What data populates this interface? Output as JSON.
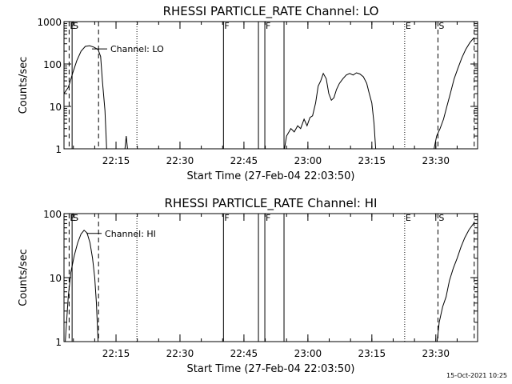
{
  "footer": {
    "timestamp": "15-Oct-2021 10:25"
  },
  "chart_data": [
    {
      "type": "line",
      "title": "RHESSI PARTICLE_RATE Channel: LO",
      "xlabel": "Start Time (27-Feb-04 22:03:50)",
      "ylabel": "Counts/sec",
      "yscale": "log",
      "ylim": [
        1,
        1000
      ],
      "y_ticks": [
        {
          "value": 1,
          "label": "1"
        },
        {
          "value": 10,
          "label": "10"
        },
        {
          "value": 100,
          "label": "100"
        },
        {
          "value": 1000,
          "label": "1000"
        }
      ],
      "xlim_min": [
        -1,
        96
      ],
      "x_ticks": [
        {
          "min": 11.2,
          "label": "22:15"
        },
        {
          "min": 26.2,
          "label": "22:30"
        },
        {
          "min": 41.2,
          "label": "22:45"
        },
        {
          "min": 56.2,
          "label": "23:00"
        },
        {
          "min": 71.2,
          "label": "23:15"
        },
        {
          "min": 86.2,
          "label": "23:30"
        }
      ],
      "annotation": "Channel: LO",
      "markers": [
        {
          "min": 0.2,
          "style": "dashed",
          "label": "E"
        },
        {
          "min": 0.9,
          "style": "solid",
          "label": "S"
        },
        {
          "min": 7.1,
          "style": "dashed",
          "label": ""
        },
        {
          "min": 16.1,
          "style": "dotted",
          "label": ""
        },
        {
          "min": 36.4,
          "style": "solid",
          "label": "F"
        },
        {
          "min": 44.6,
          "style": "solid",
          "label": ""
        },
        {
          "min": 46.1,
          "style": "solid",
          "label": "F"
        },
        {
          "min": 50.6,
          "style": "solid",
          "label": ""
        },
        {
          "min": 78.9,
          "style": "dotted",
          "label": "E"
        },
        {
          "min": 86.7,
          "style": "dashed",
          "label": "S"
        },
        {
          "min": 95.2,
          "style": "dashed",
          "label": ""
        }
      ],
      "series": [
        {
          "segments": [
            [
              [
                -1,
                20
              ],
              [
                0,
                28
              ],
              [
                0.5,
                40
              ],
              [
                1,
                60
              ],
              [
                2,
                120
              ],
              [
                3,
                200
              ],
              [
                4,
                260
              ],
              [
                5,
                270
              ],
              [
                6,
                250
              ],
              [
                7,
                220
              ],
              [
                7.6,
                150
              ],
              [
                8,
                40
              ],
              [
                8.6,
                8
              ],
              [
                9,
                1
              ]
            ],
            [
              [
                13.3,
                1
              ],
              [
                13.6,
                2
              ],
              [
                13.9,
                1
              ]
            ],
            [
              [
                50.7,
                1
              ],
              [
                51.2,
                2
              ],
              [
                52.2,
                3
              ],
              [
                53,
                2.5
              ],
              [
                53.8,
                3.5
              ],
              [
                54.5,
                3
              ],
              [
                55.3,
                5
              ],
              [
                56,
                3.5
              ],
              [
                56.7,
                5.5
              ],
              [
                57.3,
                6
              ],
              [
                58,
                12
              ],
              [
                58.6,
                30
              ],
              [
                59.2,
                40
              ],
              [
                59.8,
                60
              ],
              [
                60.5,
                45
              ],
              [
                61.1,
                20
              ],
              [
                61.7,
                14
              ],
              [
                62.3,
                16
              ],
              [
                62.9,
                25
              ],
              [
                63.6,
                35
              ],
              [
                64.4,
                45
              ],
              [
                65.2,
                55
              ],
              [
                66,
                60
              ],
              [
                66.8,
                55
              ],
              [
                67.6,
                62
              ],
              [
                68.4,
                58
              ],
              [
                69.2,
                50
              ],
              [
                70,
                35
              ],
              [
                70.6,
                20
              ],
              [
                71.2,
                12
              ],
              [
                71.7,
                4
              ],
              [
                72.1,
                1
              ]
            ],
            [
              [
                85.8,
                1
              ],
              [
                86.4,
                2
              ],
              [
                87.2,
                3
              ],
              [
                88,
                5
              ],
              [
                88.8,
                10
              ],
              [
                89.6,
                20
              ],
              [
                90.5,
                45
              ],
              [
                91.4,
                80
              ],
              [
                92.3,
                140
              ],
              [
                93.2,
                220
              ],
              [
                94.2,
                320
              ],
              [
                95.2,
                420
              ]
            ]
          ]
        }
      ]
    },
    {
      "type": "line",
      "title": "RHESSI PARTICLE_RATE Channel: HI",
      "xlabel": "Start Time (27-Feb-04 22:03:50)",
      "ylabel": "Counts/sec",
      "yscale": "log",
      "ylim": [
        1,
        100
      ],
      "y_ticks": [
        {
          "value": 1,
          "label": "1"
        },
        {
          "value": 10,
          "label": "10"
        },
        {
          "value": 100,
          "label": "100"
        }
      ],
      "xlim_min": [
        -1,
        96
      ],
      "x_ticks": [
        {
          "min": 11.2,
          "label": "22:15"
        },
        {
          "min": 26.2,
          "label": "22:30"
        },
        {
          "min": 41.2,
          "label": "22:45"
        },
        {
          "min": 56.2,
          "label": "23:00"
        },
        {
          "min": 71.2,
          "label": "23:15"
        },
        {
          "min": 86.2,
          "label": "23:30"
        }
      ],
      "annotation": "Channel: HI",
      "markers": [
        {
          "min": 0.2,
          "style": "dashed",
          "label": "E"
        },
        {
          "min": 0.9,
          "style": "solid",
          "label": "S"
        },
        {
          "min": 7.1,
          "style": "dashed",
          "label": ""
        },
        {
          "min": 16.1,
          "style": "dotted",
          "label": ""
        },
        {
          "min": 36.4,
          "style": "solid",
          "label": "F"
        },
        {
          "min": 44.6,
          "style": "solid",
          "label": ""
        },
        {
          "min": 46.1,
          "style": "solid",
          "label": "F"
        },
        {
          "min": 50.6,
          "style": "solid",
          "label": ""
        },
        {
          "min": 78.9,
          "style": "dotted",
          "label": "E"
        },
        {
          "min": 86.7,
          "style": "dashed",
          "label": "S"
        },
        {
          "min": 95.2,
          "style": "dashed",
          "label": ""
        }
      ],
      "series": [
        {
          "segments": [
            [
              [
                -0.7,
                1
              ],
              [
                -0.4,
                2
              ],
              [
                0,
                5
              ],
              [
                0.6,
                12
              ],
              [
                1.4,
                22
              ],
              [
                2.2,
                35
              ],
              [
                3,
                48
              ],
              [
                3.7,
                55
              ],
              [
                4.4,
                50
              ],
              [
                5.1,
                35
              ],
              [
                5.7,
                20
              ],
              [
                6.2,
                10
              ],
              [
                6.6,
                4
              ],
              [
                7,
                1
              ]
            ],
            [
              [
                86.5,
                1
              ],
              [
                87,
                2
              ],
              [
                87.8,
                3.5
              ],
              [
                88.6,
                5
              ],
              [
                89.4,
                9
              ],
              [
                90.3,
                14
              ],
              [
                91.2,
                20
              ],
              [
                92.1,
                30
              ],
              [
                93,
                42
              ],
              [
                94,
                56
              ],
              [
                95.2,
                72
              ]
            ]
          ]
        }
      ]
    }
  ]
}
